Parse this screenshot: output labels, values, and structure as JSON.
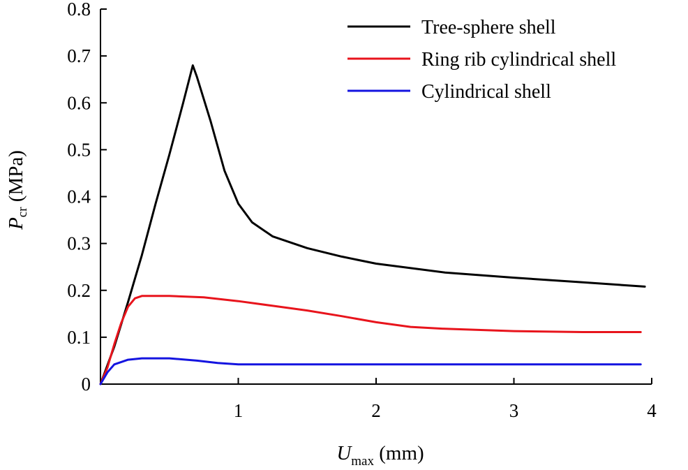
{
  "chart_data": {
    "type": "line",
    "xlabel": {
      "symbol": "U",
      "subscript": "max",
      "unit": " (mm)"
    },
    "ylabel": {
      "symbol": "P",
      "subscript": "cr",
      "unit": " (MPa)"
    },
    "xlim": [
      0,
      4
    ],
    "ylim": [
      0,
      0.8
    ],
    "xticks": [
      1,
      2,
      3,
      4
    ],
    "xtick_labels": [
      "1",
      "2",
      "3",
      "4"
    ],
    "yticks": [
      0,
      0.1,
      0.2,
      0.3,
      0.4,
      0.5,
      0.6,
      0.7,
      0.8
    ],
    "ytick_labels": [
      "0",
      "0.1",
      "0.2",
      "0.3",
      "0.4",
      "0.5",
      "0.6",
      "0.7",
      "0.8"
    ],
    "grid": false,
    "legend_position": "top-right",
    "series": [
      {
        "name": "Tree-sphere shell",
        "color": "#000000",
        "points": [
          [
            0,
            0
          ],
          [
            0.1,
            0.08
          ],
          [
            0.2,
            0.175
          ],
          [
            0.3,
            0.275
          ],
          [
            0.4,
            0.385
          ],
          [
            0.5,
            0.49
          ],
          [
            0.6,
            0.6
          ],
          [
            0.67,
            0.68
          ],
          [
            0.7,
            0.655
          ],
          [
            0.8,
            0.56
          ],
          [
            0.9,
            0.455
          ],
          [
            1.0,
            0.385
          ],
          [
            1.1,
            0.345
          ],
          [
            1.25,
            0.315
          ],
          [
            1.5,
            0.29
          ],
          [
            1.75,
            0.272
          ],
          [
            2.0,
            0.257
          ],
          [
            2.5,
            0.238
          ],
          [
            3.0,
            0.227
          ],
          [
            3.5,
            0.217
          ],
          [
            3.95,
            0.208
          ]
        ]
      },
      {
        "name": "Ring rib cylindrical shell",
        "color": "#e8141c",
        "points": [
          [
            0,
            0
          ],
          [
            0.05,
            0.035
          ],
          [
            0.1,
            0.085
          ],
          [
            0.15,
            0.13
          ],
          [
            0.2,
            0.165
          ],
          [
            0.25,
            0.183
          ],
          [
            0.3,
            0.188
          ],
          [
            0.5,
            0.188
          ],
          [
            0.75,
            0.185
          ],
          [
            1.0,
            0.177
          ],
          [
            1.25,
            0.167
          ],
          [
            1.5,
            0.157
          ],
          [
            1.75,
            0.145
          ],
          [
            2.0,
            0.132
          ],
          [
            2.25,
            0.122
          ],
          [
            2.5,
            0.118
          ],
          [
            3.0,
            0.113
          ],
          [
            3.5,
            0.111
          ],
          [
            3.92,
            0.111
          ]
        ]
      },
      {
        "name": "Cylindrical shell",
        "color": "#1414e0",
        "points": [
          [
            0,
            0
          ],
          [
            0.05,
            0.025
          ],
          [
            0.1,
            0.042
          ],
          [
            0.2,
            0.052
          ],
          [
            0.3,
            0.055
          ],
          [
            0.5,
            0.055
          ],
          [
            0.7,
            0.05
          ],
          [
            0.85,
            0.045
          ],
          [
            1.0,
            0.042
          ],
          [
            1.5,
            0.042
          ],
          [
            2.0,
            0.042
          ],
          [
            3.0,
            0.042
          ],
          [
            3.92,
            0.042
          ]
        ]
      }
    ]
  }
}
